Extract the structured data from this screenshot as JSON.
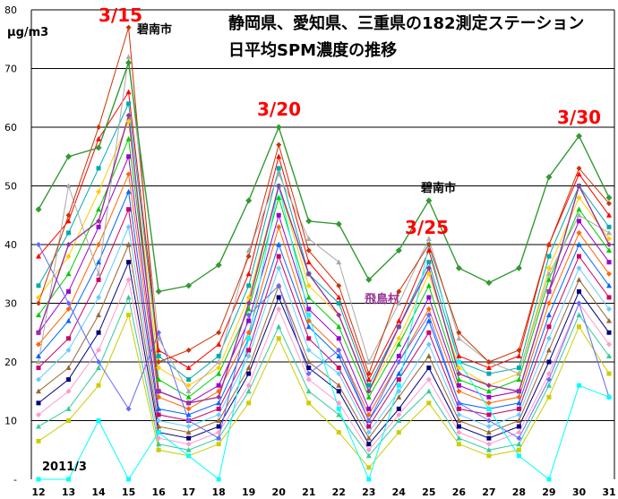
{
  "chart_data": {
    "type": "line",
    "title": "静岡県、愛知県、三重県の182測定ステーション",
    "subtitle": "日平均SPM濃度の推移",
    "ylabel": "μg/m3",
    "period_label": "2011/3",
    "ylim": [
      0,
      80
    ],
    "yticks": [
      "80",
      "70",
      "60",
      "50",
      "40",
      "30",
      "20",
      "10",
      "-"
    ],
    "categories": [
      "12",
      "13",
      "14",
      "15",
      "16",
      "17",
      "18",
      "19",
      "20",
      "21",
      "22",
      "23",
      "24",
      "25",
      "26",
      "27",
      "28",
      "29",
      "30",
      "31"
    ],
    "grid": true,
    "callouts": [
      "3/15",
      "3/20",
      "3/25",
      "3/30"
    ],
    "labels": [
      "碧南市",
      "碧南市",
      "飛鳥村"
    ],
    "colors": {
      "callout": "#ff0000",
      "title": "#000000",
      "grid": "#000000",
      "hekinan": "#339933",
      "tobishima": "#993399"
    },
    "series": [
      {
        "name": "碧南市",
        "values": [
          46,
          55,
          56.5,
          71,
          32,
          33,
          36.5,
          47.5,
          60,
          44,
          43.5,
          34,
          39,
          47.5,
          36,
          33.5,
          36,
          51.5,
          58.5,
          48
        ]
      },
      {
        "name": "飛鳥村",
        "values": [
          25,
          40,
          44,
          62,
          15,
          13,
          14,
          30,
          50,
          35,
          28,
          15,
          26,
          36,
          18,
          16,
          15,
          32,
          50,
          40
        ]
      },
      {
        "values": [
          38,
          44,
          58,
          66,
          22,
          19,
          23,
          35,
          55,
          37,
          31,
          17,
          27,
          39,
          21,
          19,
          21,
          40,
          52,
          45
        ]
      },
      {
        "values": [
          33,
          42,
          53,
          64,
          21,
          17,
          21,
          33,
          53,
          35,
          30,
          16,
          26,
          37,
          20,
          18,
          19,
          38,
          50,
          43
        ]
      },
      {
        "values": [
          31,
          38,
          49,
          61,
          19,
          16,
          19,
          31,
          50,
          33,
          28,
          15,
          24,
          35,
          19,
          16,
          18,
          36,
          48,
          41
        ]
      },
      {
        "values": [
          28,
          35,
          46,
          58,
          17,
          14,
          18,
          29,
          48,
          31,
          26,
          14,
          23,
          33,
          17,
          15,
          17,
          34,
          46,
          39
        ]
      },
      {
        "values": [
          25,
          32,
          43,
          55,
          15,
          13,
          16,
          27,
          45,
          29,
          24,
          12,
          21,
          31,
          16,
          14,
          15,
          32,
          44,
          37
        ]
      },
      {
        "values": [
          23,
          29,
          40,
          52,
          14,
          12,
          15,
          25,
          43,
          27,
          22,
          11,
          20,
          29,
          15,
          13,
          14,
          30,
          42,
          35
        ]
      },
      {
        "values": [
          21,
          27,
          37,
          49,
          12,
          11,
          13,
          24,
          40,
          26,
          21,
          10,
          18,
          27,
          13,
          12,
          13,
          28,
          40,
          33
        ]
      },
      {
        "values": [
          19,
          24,
          34,
          46,
          11,
          10,
          12,
          22,
          38,
          24,
          19,
          9,
          17,
          25,
          12,
          11,
          12,
          26,
          38,
          31
        ]
      },
      {
        "values": [
          17,
          22,
          31,
          43,
          10,
          9,
          11,
          21,
          36,
          22,
          18,
          8,
          15,
          23,
          11,
          9,
          11,
          24,
          36,
          29
        ]
      },
      {
        "values": [
          15,
          19,
          28,
          40,
          9,
          8,
          10,
          19,
          33,
          20,
          16,
          7,
          14,
          21,
          10,
          8,
          10,
          22,
          34,
          27
        ]
      },
      {
        "values": [
          13,
          17,
          25,
          37,
          8,
          7,
          9,
          18,
          31,
          19,
          15,
          6,
          12,
          19,
          9,
          7,
          9,
          20,
          32,
          25
        ]
      },
      {
        "values": [
          11,
          15,
          22,
          34,
          7,
          6,
          8,
          16,
          29,
          17,
          13,
          5,
          11,
          17,
          8,
          6,
          8,
          18,
          30,
          23
        ]
      },
      {
        "values": [
          9,
          12,
          19,
          31,
          6,
          5,
          7,
          15,
          26,
          15,
          11,
          4,
          10,
          15,
          7,
          5,
          6,
          16,
          28,
          21
        ]
      },
      {
        "values": [
          6.5,
          10,
          16,
          28,
          5,
          4,
          6,
          13,
          24,
          13,
          8,
          2,
          8,
          13,
          6,
          4,
          5,
          14,
          26,
          18
        ]
      },
      {
        "values": [
          40,
          30,
          20,
          12,
          25,
          10,
          7,
          28,
          33,
          18,
          22,
          10,
          20,
          28,
          13,
          10,
          7,
          17,
          30,
          14
        ]
      },
      {
        "values": [
          20,
          50,
          35,
          72,
          24,
          15,
          20,
          39,
          52,
          41,
          37,
          20,
          30,
          41,
          24,
          20,
          18,
          35,
          45,
          42
        ]
      },
      {
        "values": [
          0,
          0,
          10,
          0,
          8,
          4,
          0,
          24,
          50,
          28,
          12,
          0,
          16,
          40,
          20,
          12,
          4,
          0,
          16,
          14
        ]
      },
      {
        "values": [
          30,
          45,
          60,
          77,
          20,
          22,
          25,
          38,
          57,
          39,
          33,
          18,
          32,
          40,
          25,
          20,
          22,
          40,
          53,
          47
        ]
      }
    ]
  }
}
